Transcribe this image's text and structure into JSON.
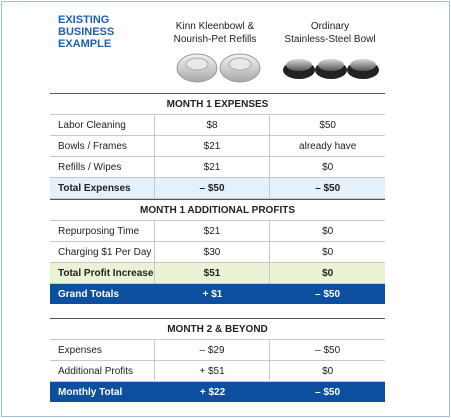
{
  "header": {
    "title": [
      "EXISTING",
      "BUSINESS",
      "EXAMPLE"
    ],
    "columns": [
      [
        "Kinn Kleenbowl &",
        "Nourish-Pet Refills"
      ],
      [
        "Ordinary",
        "Stainless-Steel Bowl"
      ]
    ]
  },
  "sections": [
    {
      "title": "MONTH 1 EXPENSES",
      "rows": [
        [
          "Labor Cleaning",
          "$8",
          "$50"
        ],
        [
          "Bowls / Frames",
          "$21",
          "already have"
        ],
        [
          "Refills / Wipes",
          "$21",
          "$0"
        ]
      ],
      "subtotal": [
        "Total Expenses",
        "– $50",
        "– $50"
      ]
    },
    {
      "title": "MONTH 1 ADDITIONAL PROFITS",
      "rows": [
        [
          "Repurposing Time",
          "$21",
          "$0"
        ],
        [
          "Charging $1 Per Day",
          "$30",
          "$0"
        ]
      ],
      "subtotal": [
        "Total Profit Increase",
        "$51",
        "$0"
      ],
      "grand_total": [
        "Grand Totals",
        "+ $1",
        "– $50"
      ]
    },
    {
      "title": "MONTH 2 & BEYOND",
      "rows": [
        [
          "Expenses",
          "– $29",
          "– $50"
        ],
        [
          "Additional Profits",
          "+ $51",
          "$0"
        ]
      ],
      "grand_total": [
        "Monthly Total",
        "+ $22",
        "– $50"
      ]
    }
  ]
}
